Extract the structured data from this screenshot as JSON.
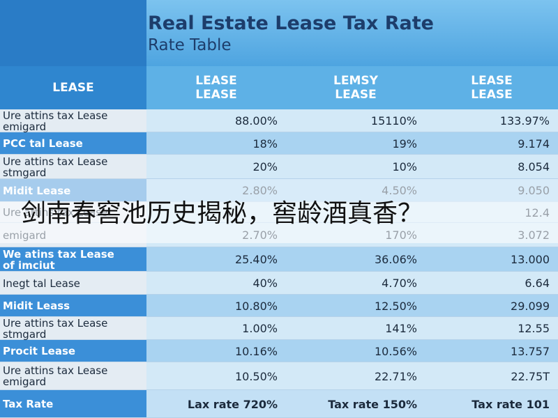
{
  "header": {
    "title": "Real Estate Lease Tax Rate",
    "subtitle": "Rate Table"
  },
  "table": {
    "columns": [
      [
        "LEASE"
      ],
      [
        "LEASE",
        "LEASE"
      ],
      [
        "LEMSY",
        "LEASE"
      ],
      [
        "LEASE",
        "LEASE"
      ]
    ],
    "rows": [
      {
        "label": [
          "Ure attins tax Lease",
          "emigard"
        ],
        "c1": "88.00%",
        "c2": "15110%",
        "c3": "133.97%"
      },
      {
        "label": [
          "PCC tal Lease"
        ],
        "c1": "18%",
        "c2": "19%",
        "c3": "9.174"
      },
      {
        "label": [
          "Ure attins tax Lease",
          "stmgard"
        ],
        "c1": "20%",
        "c2": "10%",
        "c3": "8.054"
      },
      {
        "label": [
          "Midit Lease"
        ],
        "c1": "2.80%",
        "c2": "4.50%",
        "c3": "9.050"
      },
      {
        "label": [
          "Ure attins tax Lease"
        ],
        "c3": "12.4"
      },
      {
        "label": [
          "emigard"
        ],
        "c1": "2.70%",
        "c2": "170%",
        "c3": "3.072"
      },
      {
        "label": [
          "We atins tax Lease",
          "of imciut"
        ],
        "c1": "25.40%",
        "c2": "36.06%",
        "c3": "13.000"
      },
      {
        "label": [
          "Inegt tal Lease"
        ],
        "c1": "40%",
        "c2": "4.70%",
        "c3": "6.64"
      },
      {
        "label": [
          "Midit Leass"
        ],
        "c1": "10.80%",
        "c2": "12.50%",
        "c3": "29.099"
      },
      {
        "label": [
          "Ure attins tax Lease",
          "stmgard"
        ],
        "c1": "1.00%",
        "c2": "141%",
        "c3": "12.55"
      },
      {
        "label": [
          "Procit Lease"
        ],
        "c1": "10.16%",
        "c2": "10.56%",
        "c3": "13.757"
      },
      {
        "label": [
          "Ure attins tax Lease",
          "emigard"
        ],
        "c1": "10.50%",
        "c2": "22.71%",
        "c3": "22.75T"
      }
    ],
    "footer": {
      "label": [
        "Tax Rate"
      ],
      "c1": "Lax rate 720%",
      "c2": "Tax rate 150%",
      "c3": "Tax rate 101"
    }
  },
  "overlay": "剑南春窖池历史揭秘，窖龄酒真香？"
}
